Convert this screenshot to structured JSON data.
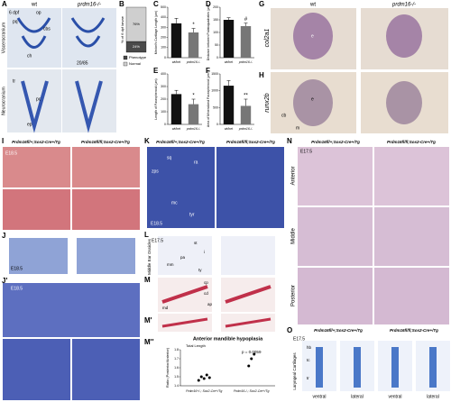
{
  "figure": {
    "A": {
      "label": "A",
      "col_titles": [
        "wt",
        "prdm16-/-"
      ],
      "stage": "6 dpf",
      "row_titles": [
        "Viscerocranium",
        "Neurocranium"
      ],
      "tags": [
        "pq",
        "op",
        "cbs",
        "ch",
        "tr",
        "pc",
        "ep"
      ],
      "ratio": "20/85"
    },
    "G": {
      "label": "G",
      "gene": "col2a1",
      "col_titles": [
        "wt",
        "prdm16-/-"
      ],
      "tags": [
        "e"
      ]
    },
    "H": {
      "label": "H",
      "gene": "runx2b",
      "tags": [
        "e",
        "cb",
        "m"
      ]
    },
    "I": {
      "label": "I",
      "col_titles": [
        "Prdm16fl/+;Sox2-Cre+/Tg",
        "Prdm16fl/fl;Sox2-Cre+/Tg"
      ],
      "stage": "E18.5"
    },
    "J": {
      "label": "J",
      "stage": "E18.5"
    },
    "J2": {
      "label": "J'",
      "stage": "E18.5"
    },
    "K": {
      "label": "K",
      "col_titles": [
        "Prdm16fl/+;Sox2-Cre+/Tg",
        "Prdm16fl/fl;Sox2-Cre+/Tg"
      ],
      "stage": "E18.5",
      "tags": [
        "sq",
        "zps",
        "ra",
        "mc",
        "tyr"
      ]
    },
    "L": {
      "label": "L",
      "stage": "E17.5",
      "side_title": "Middle Ear Ossicles",
      "tags": [
        "st",
        "i",
        "pa",
        "mm",
        "ty"
      ]
    },
    "M": {
      "label": "M",
      "tags": [
        "cp",
        "cd",
        "ap",
        "md"
      ]
    },
    "M2": {
      "label": "M'"
    },
    "N": {
      "label": "N",
      "col_titles": [
        "Prdm16fl/+;Sox2-Cre+/Tg",
        "Prdm16fl/fl;Sox2-Cre+/Tg"
      ],
      "stage": "E17.5",
      "row_titles": [
        "Anterior",
        "Middle",
        "Posterior"
      ]
    },
    "O": {
      "label": "O",
      "col_titles": [
        "Prdm16fl/+;Sox2-Cre+/Tg",
        "Prdm16fl/fl;Sox2-Cre+/Tg"
      ],
      "stage": "E17.5",
      "side_title": "Laryngeal Cartilages",
      "tags": [
        "hb",
        "tc",
        "tr"
      ],
      "views": [
        "ventral",
        "lateral",
        "ventral",
        "lateral"
      ]
    }
  },
  "chart_data": [
    {
      "type": "stacked_bar",
      "label": "B",
      "ylabel": "% of 6 dpf larvae",
      "ylim": [
        0,
        100
      ],
      "series": [
        {
          "name": "Phenotype",
          "color": "#4a4a4a",
          "values": [
            24
          ],
          "value_labels": [
            "24%"
          ]
        },
        {
          "name": "Normal",
          "color": "#cfcfcf",
          "values": [
            76
          ],
          "value_labels": [
            "76%"
          ]
        }
      ]
    },
    {
      "type": "bar",
      "label": "C",
      "ylabel": "Meckel's Cartilage Length (µm)",
      "categories": [
        "wt/het",
        "prdm16-/-"
      ],
      "values": [
        340,
        250
      ],
      "errors": [
        50,
        40
      ],
      "color": "#111",
      "ylim": [
        0,
        500
      ],
      "yticks": [
        0,
        100,
        200,
        300,
        400,
        500
      ],
      "annotation": "*"
    },
    {
      "type": "bar",
      "label": "D",
      "ylabel": "Distance between Palatoquadrates (µm)",
      "categories": [
        "wt/het",
        "prdm16-/-"
      ],
      "values": [
        150,
        125
      ],
      "errors": [
        8,
        12
      ],
      "color": "#111",
      "ylim": [
        0,
        200
      ],
      "yticks": [
        0,
        50,
        100,
        150,
        200
      ],
      "annotation": "#"
    },
    {
      "type": "bar",
      "label": "E",
      "ylabel": "Length of Parasphenoid (µm)",
      "categories": [
        "wt/het",
        "prdm16-/-"
      ],
      "values": [
        240,
        160
      ],
      "errors": [
        30,
        40
      ],
      "color": "#111",
      "ylim": [
        0,
        400
      ],
      "yticks": [
        0,
        100,
        200,
        300,
        400
      ],
      "annotation": "*"
    },
    {
      "type": "bar",
      "label": "F",
      "ylabel": "Area of Mineralized Parasphenoid (µm²)",
      "categories": [
        "wt/het",
        "prdm16-/-"
      ],
      "values": [
        1150,
        550
      ],
      "errors": [
        150,
        200
      ],
      "color": "#111",
      "ylim": [
        0,
        1500
      ],
      "yticks": [
        0,
        500,
        1000,
        1500
      ],
      "annotation": "**"
    },
    {
      "type": "dot",
      "label": "M''",
      "title": "Anterior mandible hypoplasia",
      "inset_label": "Total Length",
      "ylabel": "Ratio (Posterior/Anterior)",
      "categories": [
        "Prdm16+/-; Sox2-Cre+/Tg",
        "Prdm16-/-; Sox2-Cre+/Tg"
      ],
      "points": [
        [
          1.46,
          1.5,
          1.48,
          1.52,
          1.49
        ],
        [
          1.62,
          1.7,
          1.75
        ]
      ],
      "ylim": [
        1.4,
        1.8
      ],
      "yticks": [
        1.4,
        1.5,
        1.6,
        1.7,
        1.8
      ],
      "annotation": "p = 0.0059"
    }
  ]
}
